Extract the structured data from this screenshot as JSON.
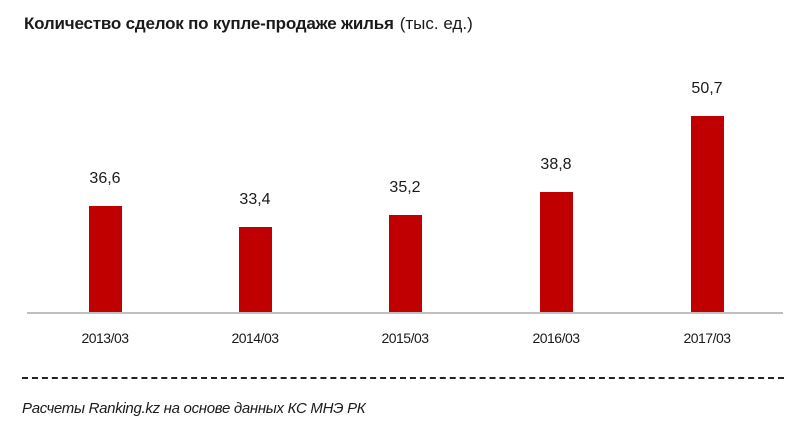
{
  "title": {
    "main": "Количество  сделок по купле-продаже жилья",
    "unit": "(тыс. ед.)"
  },
  "bar_color": "#c00000",
  "chart_data": {
    "type": "bar",
    "title": "Количество сделок по купле-продаже жилья (тыс. ед.)",
    "xlabel": "",
    "ylabel": "тыс. ед.",
    "categories": [
      "2013/03",
      "2014/03",
      "2015/03",
      "2016/03",
      "2017/03"
    ],
    "values": [
      36.6,
      33.4,
      35.2,
      38.8,
      50.7
    ],
    "value_labels": [
      "36,6",
      "33,4",
      "35,2",
      "38,8",
      "50,7"
    ],
    "grid": false,
    "legend": "none"
  },
  "source": "Расчеты Ranking.kz на основе данных  КС МНЭ РК"
}
